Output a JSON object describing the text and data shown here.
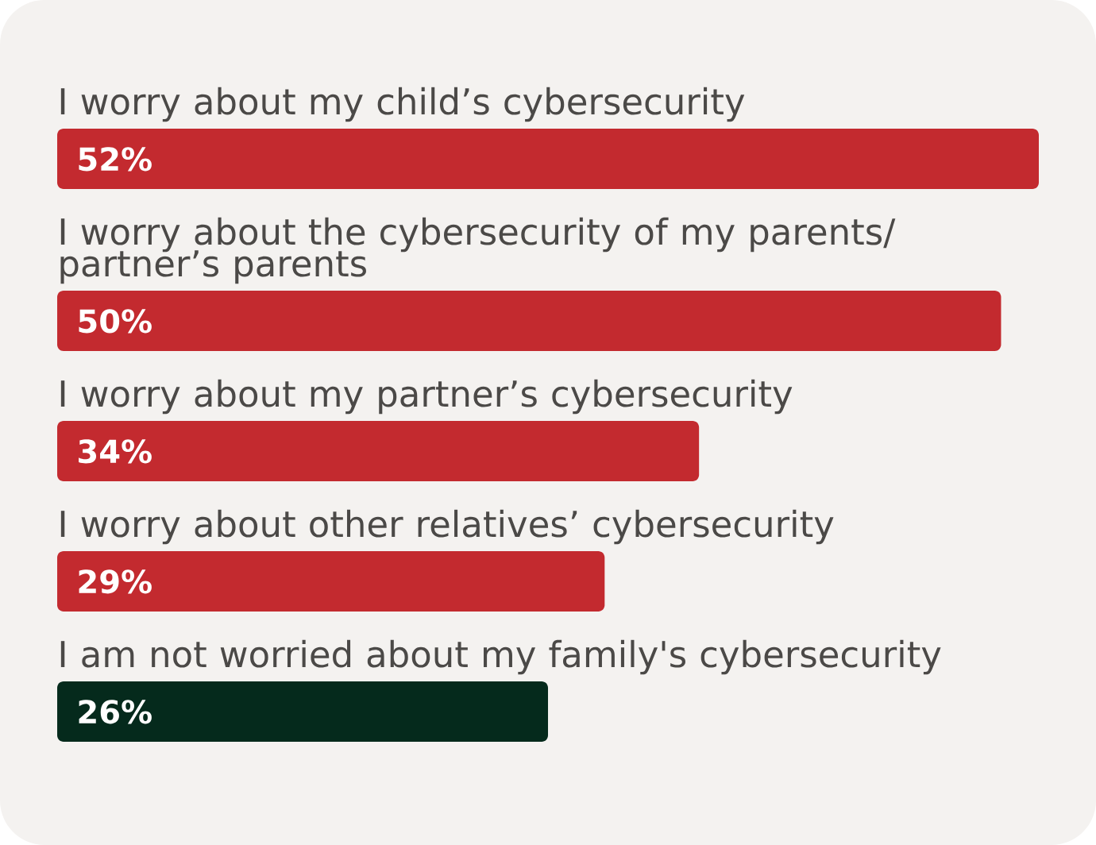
{
  "chart_data": {
    "type": "bar",
    "orientation": "horizontal",
    "categories": [
      "I worry about my child’s cybersecurity",
      "I worry about the cybersecurity of my parents/ partner’s parents",
      "I worry about my partner’s cybersecurity",
      "I worry about other relatives’ cybersecurity",
      "I am not worried about my family's cybersecurity"
    ],
    "values": [
      52,
      50,
      34,
      29,
      26
    ],
    "colors": [
      "#c32a2f",
      "#c32a2f",
      "#c32a2f",
      "#c32a2f",
      "#052a1c"
    ],
    "value_labels": [
      "52%",
      "50%",
      "34%",
      "29%",
      "26%"
    ]
  }
}
